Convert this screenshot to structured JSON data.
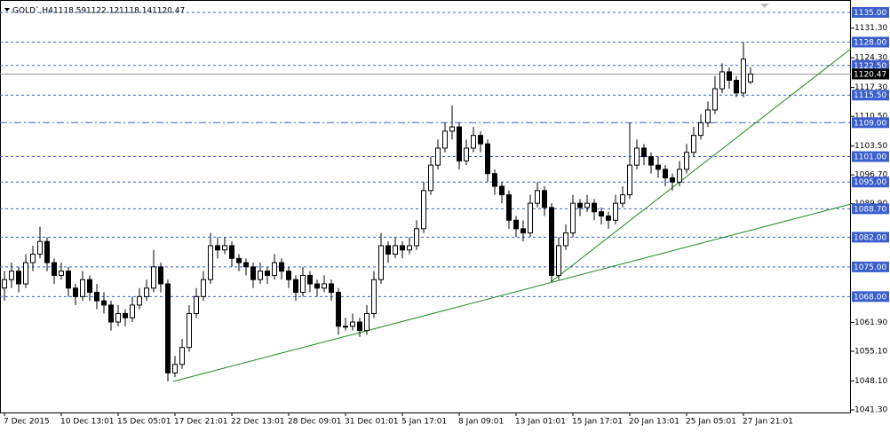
{
  "chart_data": {
    "type": "candlestick",
    "title": "GOLD`,H4",
    "categories": [
      "7 Dec 2015",
      null,
      null,
      null,
      null,
      null,
      null,
      null,
      "10 Dec 13:01",
      null,
      null,
      null,
      null,
      null,
      null,
      null,
      "15 Dec 05:01",
      null,
      null,
      null,
      null,
      null,
      null,
      null,
      "17 Dec 21:01",
      null,
      null,
      null,
      null,
      null,
      null,
      null,
      "22 Dec 13:01",
      null,
      null,
      null,
      null,
      null,
      null,
      null,
      "28 Dec 09:01",
      null,
      null,
      null,
      null,
      null,
      null,
      null,
      "31 Dec 01:01",
      null,
      null,
      null,
      null,
      null,
      null,
      null,
      "5 Jan 17:01",
      null,
      null,
      null,
      null,
      null,
      null,
      null,
      "8 Jan 09:01",
      null,
      null,
      null,
      null,
      null,
      null,
      null,
      "13 Jan 01:01",
      null,
      null,
      null,
      null,
      null,
      null,
      null,
      "15 Jan 17:01",
      null,
      null,
      null,
      null,
      null,
      null,
      null,
      "20 Jan 13:01",
      null,
      null,
      null,
      null,
      null,
      null,
      null,
      "25 Jan 05:01",
      null,
      null,
      null,
      null,
      null,
      null,
      null,
      "27 Jan 21:01",
      null
    ],
    "ohlc": [
      [
        1070,
        1074,
        1067,
        1072
      ],
      [
        1072,
        1076,
        1070,
        1074
      ],
      [
        1074,
        1075,
        1069,
        1071
      ],
      [
        1071,
        1078,
        1070,
        1076
      ],
      [
        1076,
        1080,
        1074,
        1078
      ],
      [
        1078,
        1084.5,
        1077,
        1081
      ],
      [
        1081,
        1082,
        1074,
        1076
      ],
      [
        1076,
        1077,
        1071,
        1073
      ],
      [
        1073,
        1076,
        1072,
        1074
      ],
      [
        1074,
        1075,
        1068,
        1070
      ],
      [
        1070,
        1071,
        1066,
        1068
      ],
      [
        1068,
        1074,
        1067,
        1072
      ],
      [
        1072,
        1073,
        1067,
        1069
      ],
      [
        1069,
        1071,
        1065,
        1067
      ],
      [
        1067,
        1069,
        1064,
        1066
      ],
      [
        1066,
        1067,
        1060,
        1062
      ],
      [
        1062,
        1066,
        1061,
        1064
      ],
      [
        1064,
        1065,
        1061,
        1063
      ],
      [
        1063,
        1068,
        1062,
        1066
      ],
      [
        1066,
        1070,
        1065,
        1068
      ],
      [
        1068,
        1072,
        1067,
        1070
      ],
      [
        1070,
        1079,
        1069,
        1075
      ],
      [
        1075,
        1076,
        1069,
        1071
      ],
      [
        1071,
        1072,
        1048,
        1050
      ],
      [
        1050,
        1054,
        1049,
        1052
      ],
      [
        1052,
        1058,
        1051,
        1056
      ],
      [
        1056,
        1066,
        1055,
        1064
      ],
      [
        1064,
        1070,
        1063,
        1068
      ],
      [
        1068,
        1074,
        1067,
        1072
      ],
      [
        1072,
        1083,
        1071,
        1080
      ],
      [
        1080,
        1082,
        1077,
        1079
      ],
      [
        1079,
        1082,
        1078,
        1080
      ],
      [
        1080,
        1081,
        1075,
        1077
      ],
      [
        1077,
        1078,
        1074,
        1076
      ],
      [
        1076,
        1077,
        1073,
        1075
      ],
      [
        1075,
        1076,
        1070,
        1072
      ],
      [
        1072,
        1076,
        1071,
        1074
      ],
      [
        1074,
        1075,
        1071,
        1073
      ],
      [
        1073,
        1078,
        1072,
        1076
      ],
      [
        1076,
        1077,
        1072,
        1074
      ],
      [
        1074,
        1075,
        1070,
        1072
      ],
      [
        1072,
        1073,
        1067,
        1069
      ],
      [
        1069,
        1075,
        1068,
        1073
      ],
      [
        1073,
        1074,
        1069,
        1071
      ],
      [
        1071,
        1072,
        1068,
        1070
      ],
      [
        1070,
        1073,
        1069,
        1071
      ],
      [
        1071,
        1072,
        1067,
        1069
      ],
      [
        1069,
        1070,
        1059,
        1061
      ],
      [
        1061,
        1063,
        1060,
        1061
      ],
      [
        1061,
        1064,
        1060,
        1062
      ],
      [
        1062,
        1063,
        1058.5,
        1060
      ],
      [
        1060,
        1066,
        1059,
        1064
      ],
      [
        1064,
        1074,
        1063,
        1072
      ],
      [
        1072,
        1083,
        1071,
        1080
      ],
      [
        1080,
        1081,
        1076,
        1078
      ],
      [
        1078,
        1082,
        1077,
        1080
      ],
      [
        1080,
        1081,
        1077,
        1079
      ],
      [
        1079,
        1082,
        1078,
        1080
      ],
      [
        1080,
        1086,
        1079,
        1084
      ],
      [
        1084,
        1095,
        1083,
        1093
      ],
      [
        1093,
        1101,
        1092,
        1099
      ],
      [
        1099,
        1105,
        1098,
        1103
      ],
      [
        1103,
        1109,
        1102,
        1107
      ],
      [
        1107,
        1113,
        1105,
        1108
      ],
      [
        1108,
        1109,
        1098,
        1100
      ],
      [
        1100,
        1105,
        1099,
        1103
      ],
      [
        1103,
        1108,
        1102,
        1106
      ],
      [
        1106,
        1107,
        1102,
        1104
      ],
      [
        1104,
        1105,
        1095,
        1097
      ],
      [
        1097,
        1098,
        1092,
        1094
      ],
      [
        1094,
        1095,
        1090,
        1092
      ],
      [
        1092,
        1093,
        1084,
        1086
      ],
      [
        1086,
        1087,
        1082,
        1084
      ],
      [
        1084,
        1086,
        1081,
        1083
      ],
      [
        1083,
        1092,
        1082,
        1090
      ],
      [
        1090,
        1095,
        1089,
        1093
      ],
      [
        1093,
        1094,
        1087,
        1089
      ],
      [
        1089,
        1090,
        1071.5,
        1073
      ],
      [
        1073,
        1082,
        1072,
        1080
      ],
      [
        1080,
        1085,
        1079,
        1083
      ],
      [
        1083,
        1092,
        1082,
        1090
      ],
      [
        1090,
        1091,
        1087,
        1089
      ],
      [
        1089,
        1092,
        1088,
        1090
      ],
      [
        1090,
        1091,
        1086,
        1088
      ],
      [
        1088,
        1089,
        1085,
        1087
      ],
      [
        1087,
        1088,
        1084,
        1086
      ],
      [
        1086,
        1092,
        1085,
        1090
      ],
      [
        1090,
        1094,
        1089,
        1092
      ],
      [
        1092,
        1109,
        1091,
        1099
      ],
      [
        1099,
        1105,
        1098,
        1103
      ],
      [
        1103,
        1104,
        1099,
        1101
      ],
      [
        1101,
        1102,
        1097,
        1099
      ],
      [
        1099,
        1101,
        1096,
        1098
      ],
      [
        1098,
        1099,
        1094,
        1096
      ],
      [
        1096,
        1097,
        1093,
        1095
      ],
      [
        1095,
        1100,
        1094,
        1098
      ],
      [
        1098,
        1104,
        1097,
        1102
      ],
      [
        1102,
        1108,
        1101,
        1106
      ],
      [
        1106,
        1111,
        1105,
        1109
      ],
      [
        1109,
        1114,
        1108,
        1112
      ],
      [
        1112,
        1120,
        1111,
        1117
      ],
      [
        1117,
        1123,
        1116,
        1121
      ],
      [
        1121,
        1122,
        1117,
        1119
      ],
      [
        1119,
        1120,
        1115,
        1116
      ],
      [
        1116,
        1128,
        1115,
        1124
      ],
      [
        1118.59,
        1122.12,
        1118.14,
        1120.47
      ]
    ],
    "ylim": [
      1041.3,
      1135.0
    ],
    "yticks": [
      {
        "value": 1131.3,
        "label": "1131.30"
      },
      {
        "value": 1124.3,
        "label": "1124.30"
      },
      {
        "value": 1117.3,
        "label": "1117.30"
      },
      {
        "value": 1110.5,
        "label": "1110.50"
      },
      {
        "value": 1103.5,
        "label": "1103.50"
      },
      {
        "value": 1096.7,
        "label": "1096.70"
      },
      {
        "value": 1089.9,
        "label": "1089.90"
      },
      {
        "value": 1061.9,
        "label": "1061.90"
      },
      {
        "value": 1055.1,
        "label": "1055.10"
      },
      {
        "value": 1048.1,
        "label": "1048.10"
      },
      {
        "value": 1041.3,
        "label": "1041.30"
      }
    ],
    "levels": [
      {
        "value": 1135,
        "label": "1135.00"
      },
      {
        "value": 1128,
        "label": "1128.00"
      },
      {
        "value": 1122.5,
        "label": "1122.50"
      },
      {
        "value": 1115.5,
        "label": "1115.50"
      },
      {
        "value": 1109,
        "label": "1109.00",
        "style": "dashdot"
      },
      {
        "value": 1101,
        "label": "1101.00"
      },
      {
        "value": 1095,
        "label": "1095.00"
      },
      {
        "value": 1088.7,
        "label": "1088.70"
      },
      {
        "value": 1082,
        "label": "1082.00"
      },
      {
        "value": 1075,
        "label": "1075.00"
      },
      {
        "value": 1068,
        "label": "1068.00"
      }
    ],
    "level_color": "#3a5fcd",
    "price_line": {
      "value": 1120.47,
      "label": "1120.47"
    }
  }
}
